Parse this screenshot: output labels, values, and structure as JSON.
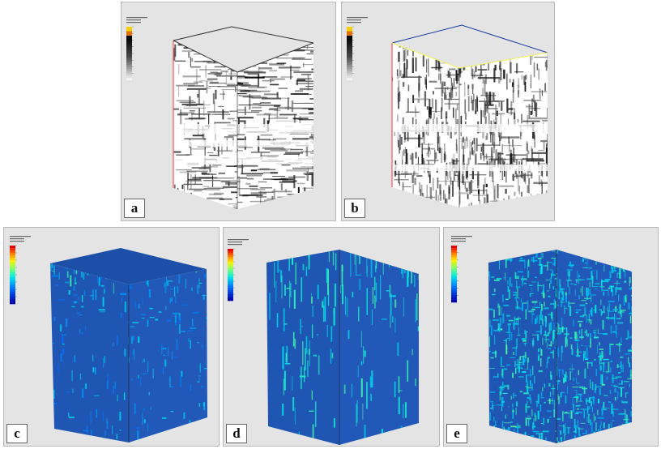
{
  "panels": [
    {
      "id": "a",
      "label": "a",
      "kind": "gray"
    },
    {
      "id": "b",
      "label": "b",
      "kind": "gray_fine"
    },
    {
      "id": "c",
      "label": "c",
      "kind": "jet_top"
    },
    {
      "id": "d",
      "label": "d",
      "kind": "jet_sparse"
    },
    {
      "id": "e",
      "label": "e",
      "kind": "jet_dense"
    }
  ],
  "colors": {
    "panel_bg": "#e4e4e4",
    "cube_blue": "#1f56b3",
    "red_edge": "#ff3333",
    "blue_edge": "#1a3aa8",
    "yellow_edge": "#f2f25a"
  }
}
